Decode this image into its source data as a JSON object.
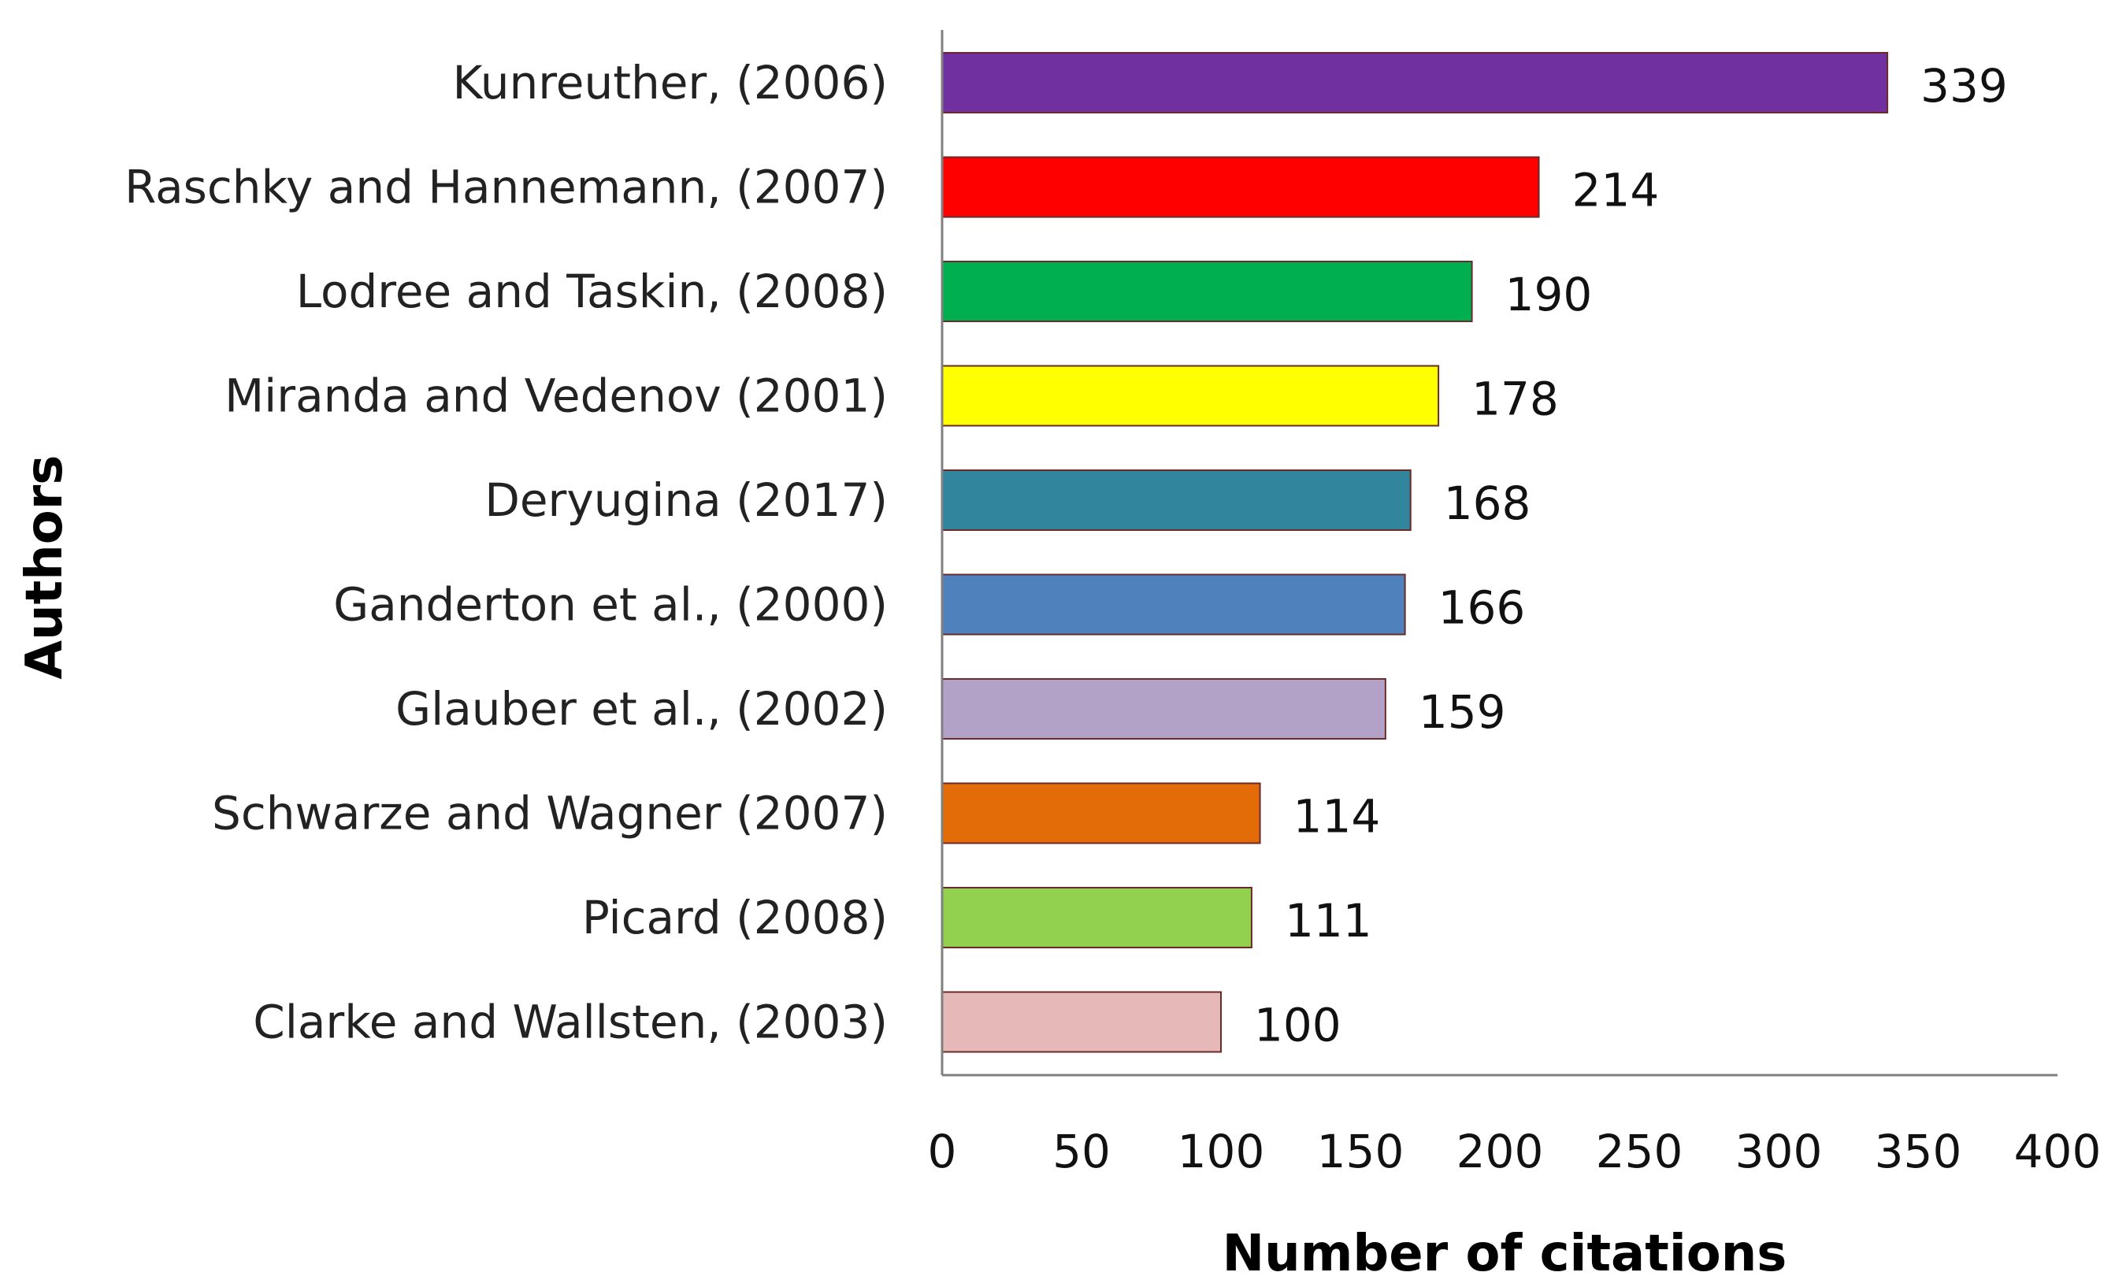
{
  "chart_data": {
    "type": "bar",
    "orientation": "horizontal",
    "categories": [
      "Kunreuther, (2006)",
      "Raschky and Hannemann, (2007)",
      "Lodree and Taskin,  (2008)",
      "Miranda and Vedenov (2001)",
      "Deryugina (2017)",
      "Ganderton et al., (2000)",
      "Glauber et al., (2002)",
      "Schwarze and Wagner (2007)",
      "Picard (2008)",
      "Clarke and Wallsten, (2003)"
    ],
    "values": [
      339,
      214,
      190,
      178,
      168,
      166,
      159,
      114,
      111,
      100
    ],
    "value_labels": [
      "339",
      "214",
      "190",
      "178",
      "168",
      "166",
      "159",
      "114",
      "111",
      "100"
    ],
    "colors": [
      "#7030A0",
      "#FF0000",
      "#00B050",
      "#FFFF00",
      "#31859C",
      "#4F81BD",
      "#B3A2C7",
      "#E36C09",
      "#92D050",
      "#E6B9B8"
    ],
    "bar_border_color": "#6B2A2A",
    "xlabel": "Number of citations",
    "ylabel": "Authors",
    "xlim": [
      0,
      400
    ],
    "xticks": [
      "0",
      "50",
      "100",
      "150",
      "200",
      "250",
      "300",
      "350",
      "400"
    ],
    "grid": false,
    "legend": "none"
  }
}
